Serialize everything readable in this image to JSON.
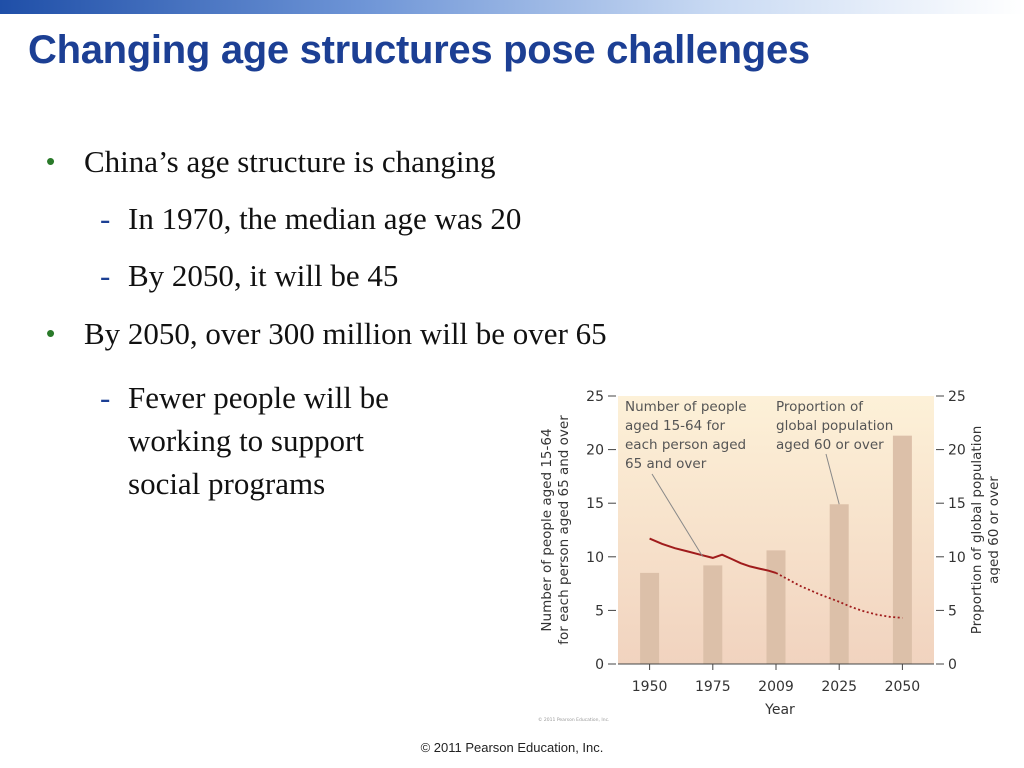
{
  "slide": {
    "title": "Changing age structures pose challenges",
    "bullets": [
      {
        "text": "China’s age structure is changing"
      },
      {
        "text": "In 1970, the median age was 20"
      },
      {
        "text": "By 2050, it will be 45"
      },
      {
        "text": "By 2050, over 300 million will be over 65"
      },
      {
        "text_lines": [
          "Fewer people will be",
          "working to support",
          "social programs"
        ]
      }
    ],
    "footer": "© 2011 Pearson Education, Inc.",
    "colors": {
      "title": "#1c3f94",
      "bullet_dot": "#2a7a2a",
      "dash": "#1c3f94"
    }
  },
  "chart_data": {
    "type": "bar",
    "xlabel": "Year",
    "ylabel_left_lines": [
      "Number of people aged 15-64",
      "for each person aged 65 and over"
    ],
    "ylabel_right_lines": [
      "Proportion of global population",
      "aged 60 or over"
    ],
    "categories": [
      "1950",
      "1975",
      "2009",
      "2025",
      "2050"
    ],
    "ylim": [
      0,
      25
    ],
    "yticks": [
      0,
      5,
      10,
      15,
      20,
      25
    ],
    "series": [
      {
        "kind": "bar",
        "axis": "right",
        "values": [
          8.5,
          9.2,
          10.6,
          14.9,
          21.3
        ]
      },
      {
        "kind": "line",
        "axis": "left",
        "x": [
          1950,
          1955,
          1960,
          1965,
          1970,
          1975,
          1980,
          1985,
          1990,
          1995,
          2000,
          2005,
          2009
        ],
        "values": [
          11.7,
          11.2,
          10.8,
          10.5,
          10.2,
          9.9,
          10.2,
          9.8,
          9.4,
          9.1,
          8.9,
          8.7,
          8.5
        ],
        "style": "solid",
        "color": "#a01c1c"
      },
      {
        "kind": "line",
        "axis": "left",
        "x": [
          2009,
          2015,
          2020,
          2025,
          2030,
          2035,
          2040,
          2045,
          2050
        ],
        "values": [
          8.5,
          7.3,
          6.5,
          5.8,
          5.3,
          4.9,
          4.6,
          4.4,
          4.3
        ],
        "style": "dotted",
        "color": "#a01c1c"
      }
    ],
    "annotations": [
      {
        "lines": [
          "Number of people",
          "aged 15-64 for",
          "each person aged",
          "65 and over"
        ]
      },
      {
        "lines": [
          "Proportion of",
          "global population",
          "aged 60 or over"
        ]
      }
    ],
    "credit": "© 2011 Pearson Education, Inc.",
    "grid": false,
    "colors": {
      "plot_top": "#fdf1d8",
      "plot_bottom": "#f1d3bf",
      "bar": "#dcc0a9",
      "line": "#a01c1c"
    }
  }
}
